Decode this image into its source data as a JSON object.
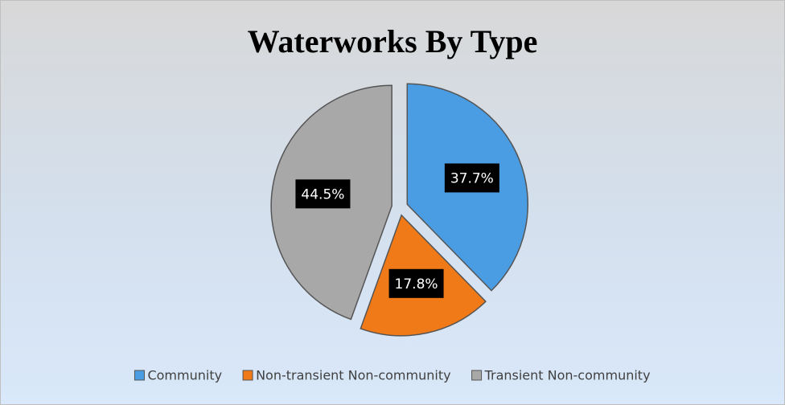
{
  "chart_data": {
    "type": "pie",
    "title": "Waterworks By Type",
    "categories": [
      "Community",
      "Non-transient Non-community",
      "Transient Non-community"
    ],
    "values": [
      37.7,
      17.8,
      44.5
    ],
    "value_labels": [
      "37.7%",
      "17.8%",
      "44.5%"
    ],
    "colors": [
      "#4a9de2",
      "#f07a18",
      "#a8a8a8"
    ],
    "legend": "bottom"
  }
}
